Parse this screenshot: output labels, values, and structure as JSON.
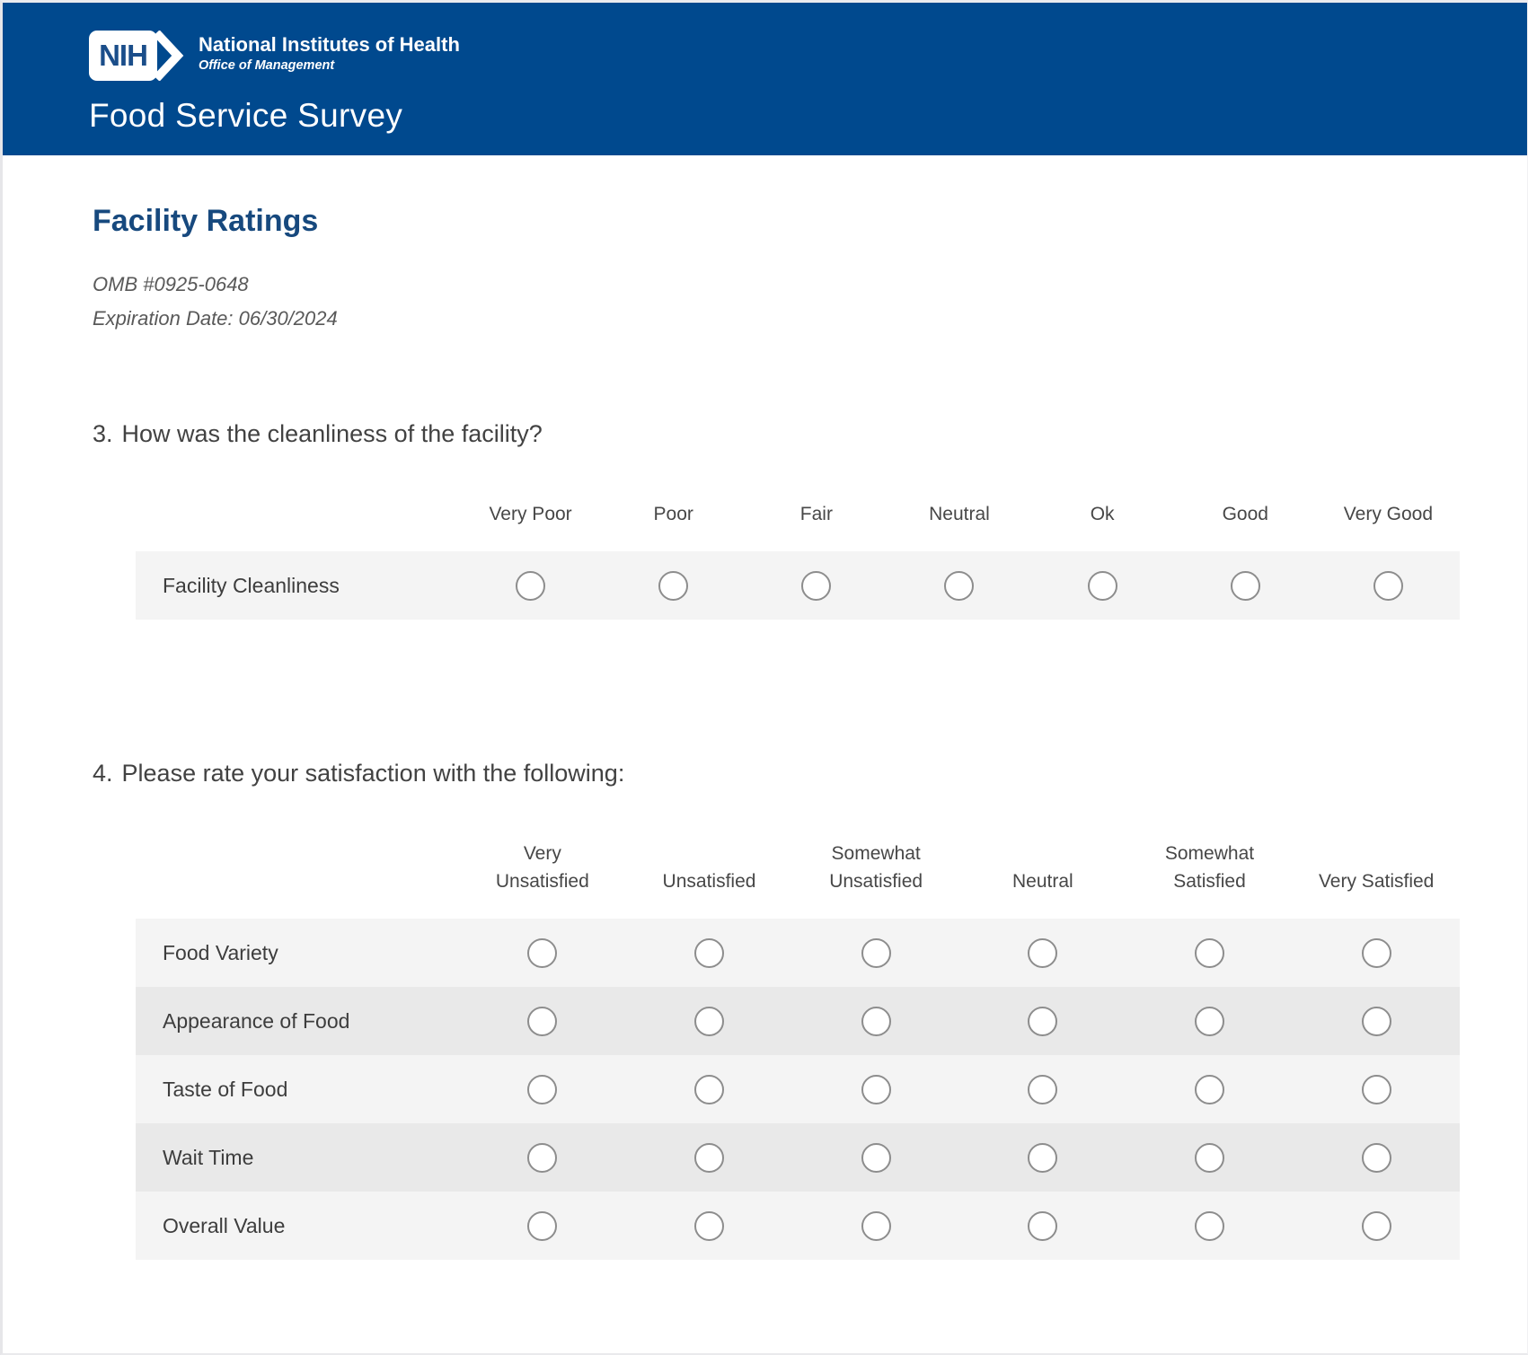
{
  "theme": {
    "header_bg": "#00498e",
    "heading_color": "#17497e",
    "row_light": "#f4f4f4",
    "row_dark": "#e9e9e9",
    "radio_border": "#8d8d8d"
  },
  "header": {
    "logo_acronym": "NIH",
    "org": "National Institutes of Health",
    "office": "Office of Management",
    "title": "Food Service Survey"
  },
  "section": {
    "title": "Facility Ratings",
    "omb": "OMB #0925-0648",
    "expiration": "Expiration Date: 06/30/2024"
  },
  "questions": [
    {
      "number": "3.",
      "text": "How was the cleanliness of the facility?",
      "options": [
        "Very Poor",
        "Poor",
        "Fair",
        "Neutral",
        "Ok",
        "Good",
        "Very Good"
      ],
      "rows": [
        "Facility Cleanliness"
      ]
    },
    {
      "number": "4.",
      "text": "Please rate your satisfaction with the following:",
      "options": [
        "Very Unsatisfied",
        "Unsatisfied",
        "Somewhat Unsatisfied",
        "Neutral",
        "Somewhat Satisfied",
        "Very Satisfied"
      ],
      "rows": [
        "Food Variety",
        "Appearance of Food",
        "Taste of Food",
        "Wait Time",
        "Overall Value"
      ]
    }
  ]
}
